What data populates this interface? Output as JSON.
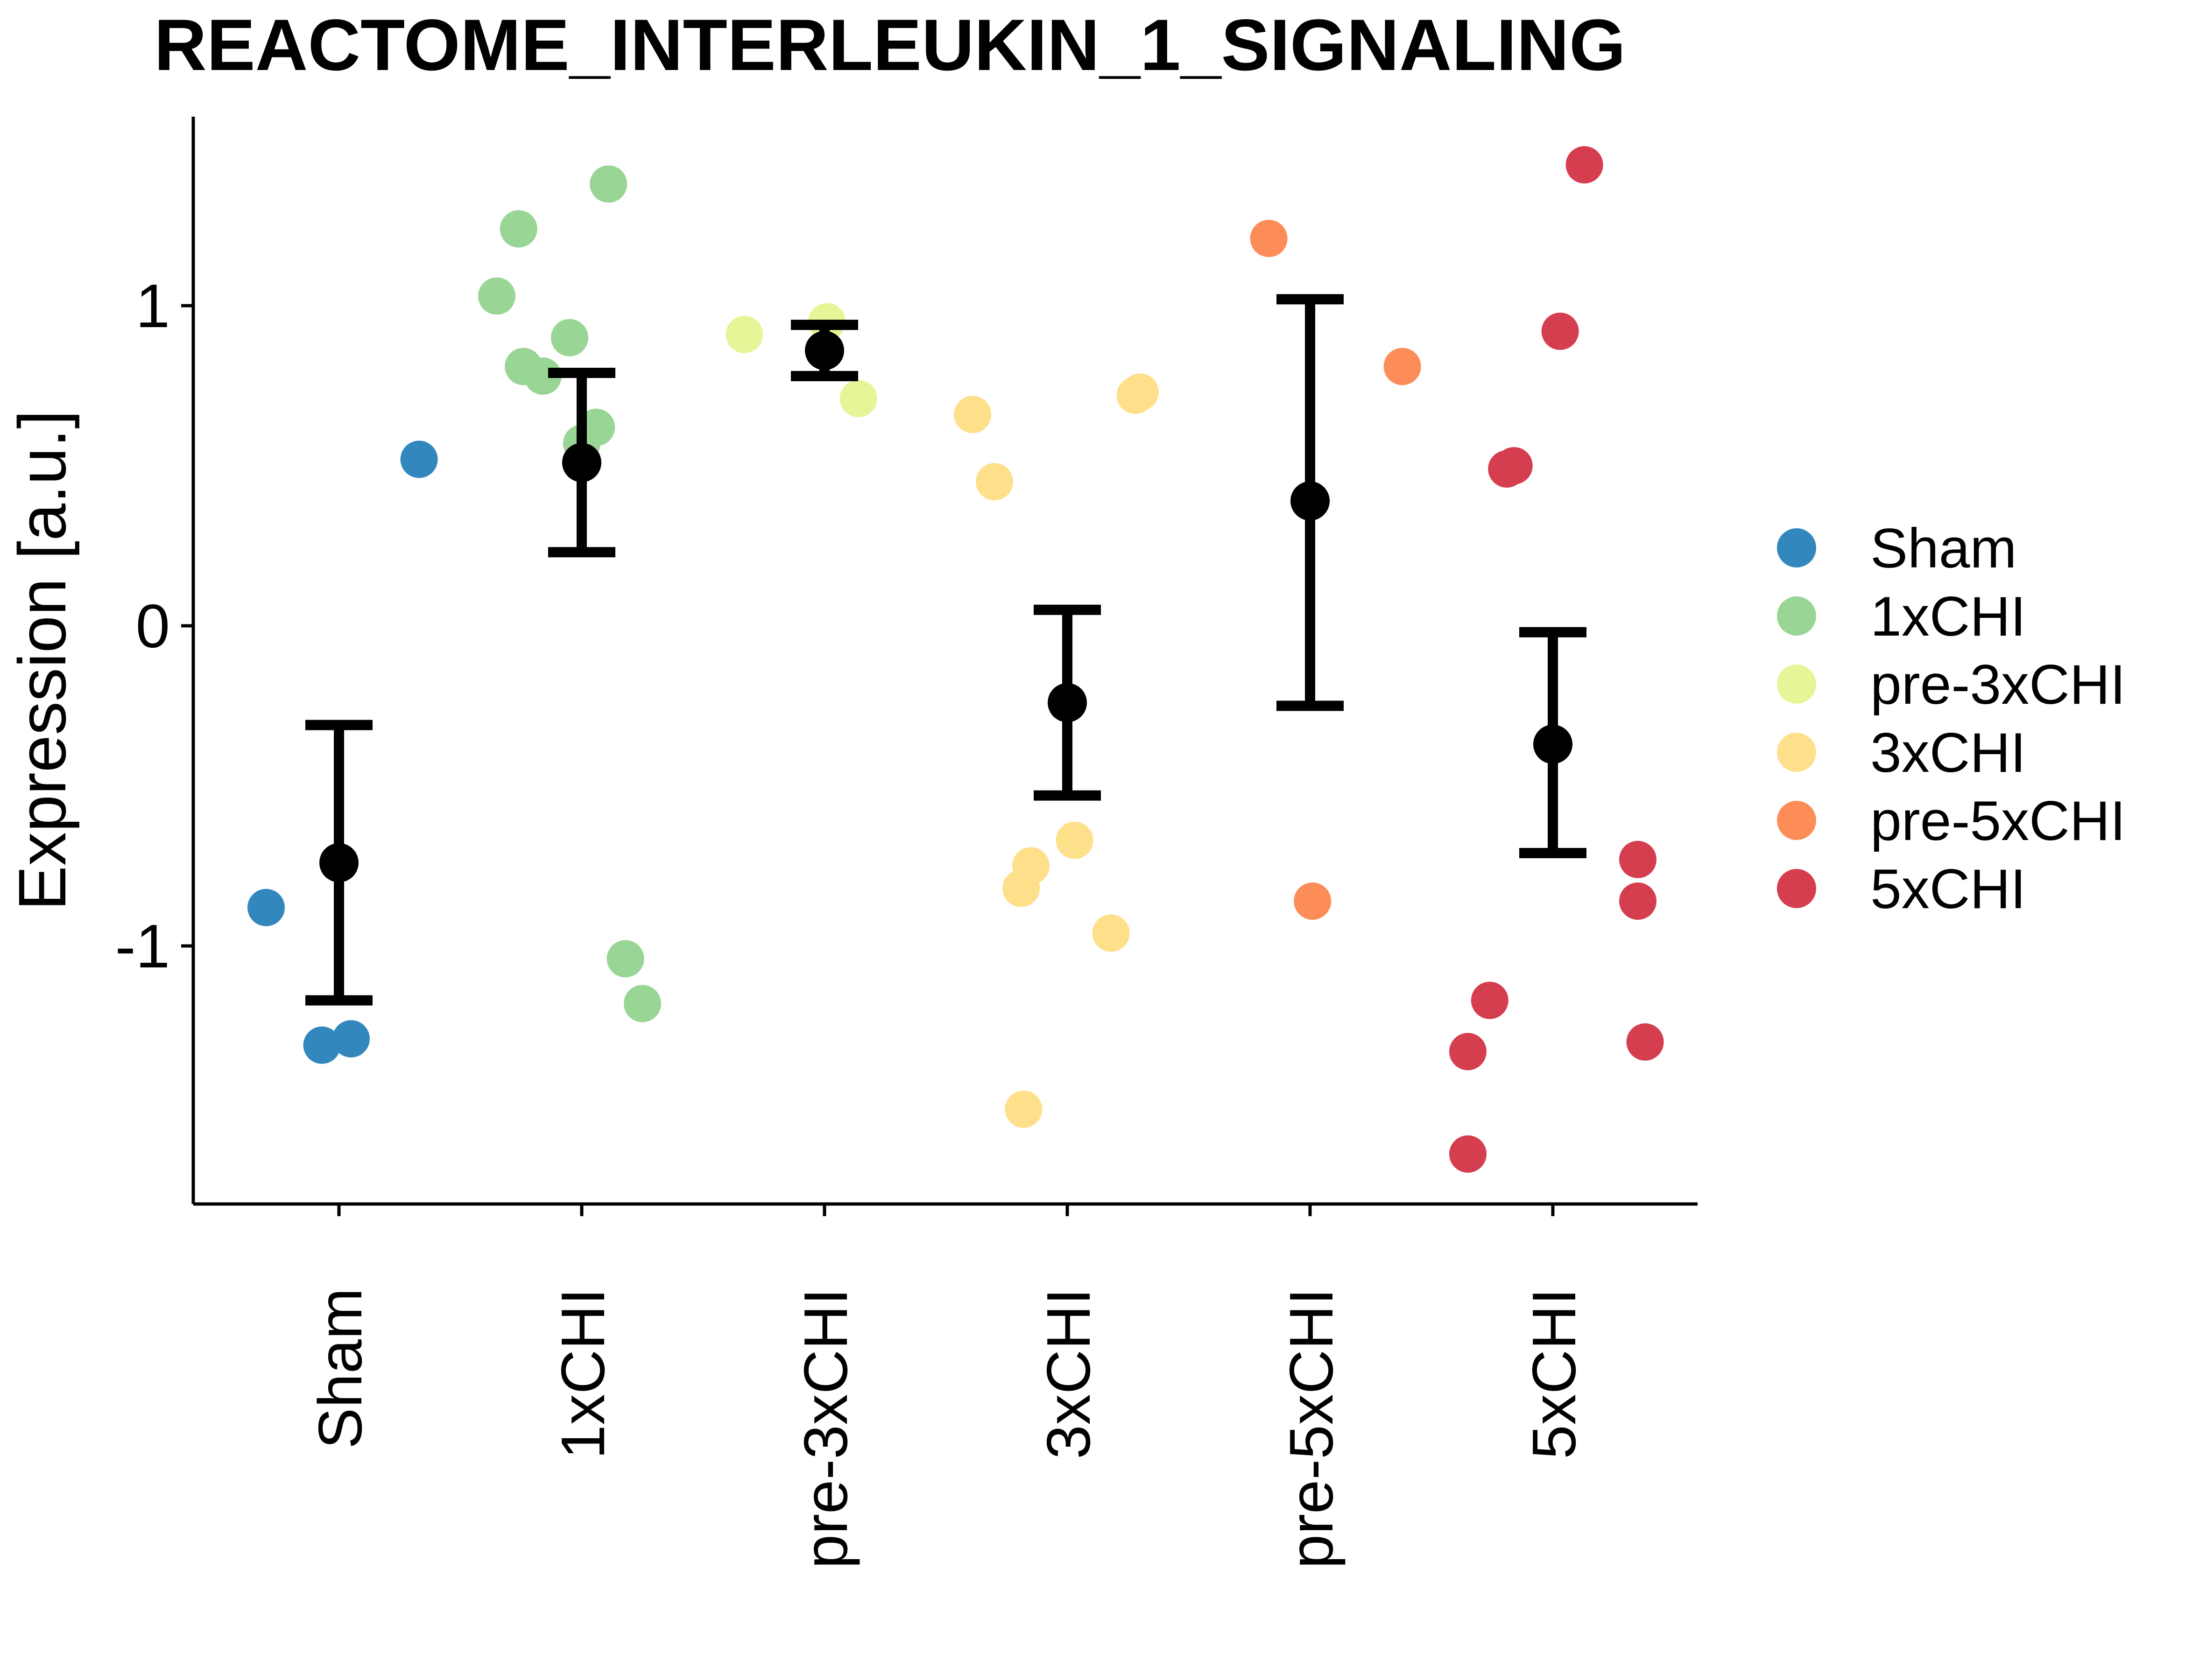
{
  "chart_data": {
    "type": "scatter",
    "title": "REACTOME_INTERLEUKIN_1_SIGNALING",
    "ylabel": "Expression [a.u.]",
    "xlabel": "",
    "categories": [
      "Sham",
      "1xCHI",
      "pre-3xCHI",
      "3xCHI",
      "pre-5xCHI",
      "5xCHI"
    ],
    "ylim": [
      -1.8,
      1.6
    ],
    "yticks": [
      -1,
      0,
      1
    ],
    "ytick_labels": [
      "-1",
      "0",
      "1"
    ],
    "grid": false,
    "legend_position": "right",
    "colors": {
      "Sham": "#3288bd",
      "1xCHI": "#99d594",
      "pre-3xCHI": "#e6f598",
      "3xCHI": "#fee08b",
      "pre-5xCHI": "#fc8d59",
      "5xCHI": "#d53e4f"
    },
    "legend": [
      {
        "label": "Sham",
        "color": "#3288bd"
      },
      {
        "label": "1xCHI",
        "color": "#99d594"
      },
      {
        "label": "pre-3xCHI",
        "color": "#e6f598"
      },
      {
        "label": "3xCHI",
        "color": "#fee08b"
      },
      {
        "label": "pre-5xCHI",
        "color": "#fc8d59"
      },
      {
        "label": "5xCHI",
        "color": "#d53e4f"
      }
    ],
    "series": [
      {
        "group": "Sham",
        "points": [
          {
            "jitter": -0.3,
            "y": -0.88
          },
          {
            "jitter": -0.07,
            "y": -1.31
          },
          {
            "jitter": 0.05,
            "y": -1.29
          },
          {
            "jitter": 0.33,
            "y": 0.52
          }
        ]
      },
      {
        "group": "1xCHI",
        "points": [
          {
            "jitter": -0.35,
            "y": 1.03
          },
          {
            "jitter": -0.26,
            "y": 1.24
          },
          {
            "jitter": -0.24,
            "y": 0.81
          },
          {
            "jitter": -0.16,
            "y": 0.78
          },
          {
            "jitter": -0.05,
            "y": 0.9
          },
          {
            "jitter": 0.0,
            "y": 0.57
          },
          {
            "jitter": 0.06,
            "y": 0.62
          },
          {
            "jitter": 0.11,
            "y": 1.38
          },
          {
            "jitter": 0.18,
            "y": -1.04
          },
          {
            "jitter": 0.25,
            "y": -1.18
          }
        ]
      },
      {
        "group": "pre-3xCHI",
        "points": [
          {
            "jitter": -0.33,
            "y": 0.91
          },
          {
            "jitter": 0.01,
            "y": 0.95
          },
          {
            "jitter": 0.14,
            "y": 0.71
          }
        ]
      },
      {
        "group": "3xCHI",
        "points": [
          {
            "jitter": -0.39,
            "y": 0.66
          },
          {
            "jitter": -0.3,
            "y": 0.45
          },
          {
            "jitter": -0.19,
            "y": -0.82
          },
          {
            "jitter": -0.18,
            "y": -1.51
          },
          {
            "jitter": -0.15,
            "y": -0.75
          },
          {
            "jitter": 0.03,
            "y": -0.67
          },
          {
            "jitter": 0.18,
            "y": -0.96
          },
          {
            "jitter": 0.28,
            "y": 0.72
          },
          {
            "jitter": 0.3,
            "y": 0.73
          }
        ]
      },
      {
        "group": "pre-5xCHI",
        "points": [
          {
            "jitter": -0.17,
            "y": 1.21
          },
          {
            "jitter": 0.01,
            "y": -0.86
          },
          {
            "jitter": 0.38,
            "y": 0.81
          }
        ]
      },
      {
        "group": "5xCHI",
        "points": [
          {
            "jitter": -0.35,
            "y": -1.65
          },
          {
            "jitter": -0.35,
            "y": -1.33
          },
          {
            "jitter": -0.26,
            "y": -1.17
          },
          {
            "jitter": -0.19,
            "y": 0.49
          },
          {
            "jitter": -0.16,
            "y": 0.5
          },
          {
            "jitter": 0.03,
            "y": 0.92
          },
          {
            "jitter": 0.13,
            "y": 1.44
          },
          {
            "jitter": 0.35,
            "y": -0.73
          },
          {
            "jitter": 0.35,
            "y": -0.86
          },
          {
            "jitter": 0.38,
            "y": -1.3
          }
        ]
      }
    ],
    "summary": [
      {
        "group": "Sham",
        "mean": -0.74,
        "lower": -1.17,
        "upper": -0.31
      },
      {
        "group": "1xCHI",
        "mean": 0.51,
        "lower": 0.23,
        "upper": 0.79
      },
      {
        "group": "pre-3xCHI",
        "mean": 0.86,
        "lower": 0.78,
        "upper": 0.94
      },
      {
        "group": "3xCHI",
        "mean": -0.24,
        "lower": -0.53,
        "upper": 0.05
      },
      {
        "group": "pre-5xCHI",
        "mean": 0.39,
        "lower": -0.25,
        "upper": 1.02
      },
      {
        "group": "5xCHI",
        "mean": -0.37,
        "lower": -0.71,
        "upper": -0.02
      }
    ]
  }
}
